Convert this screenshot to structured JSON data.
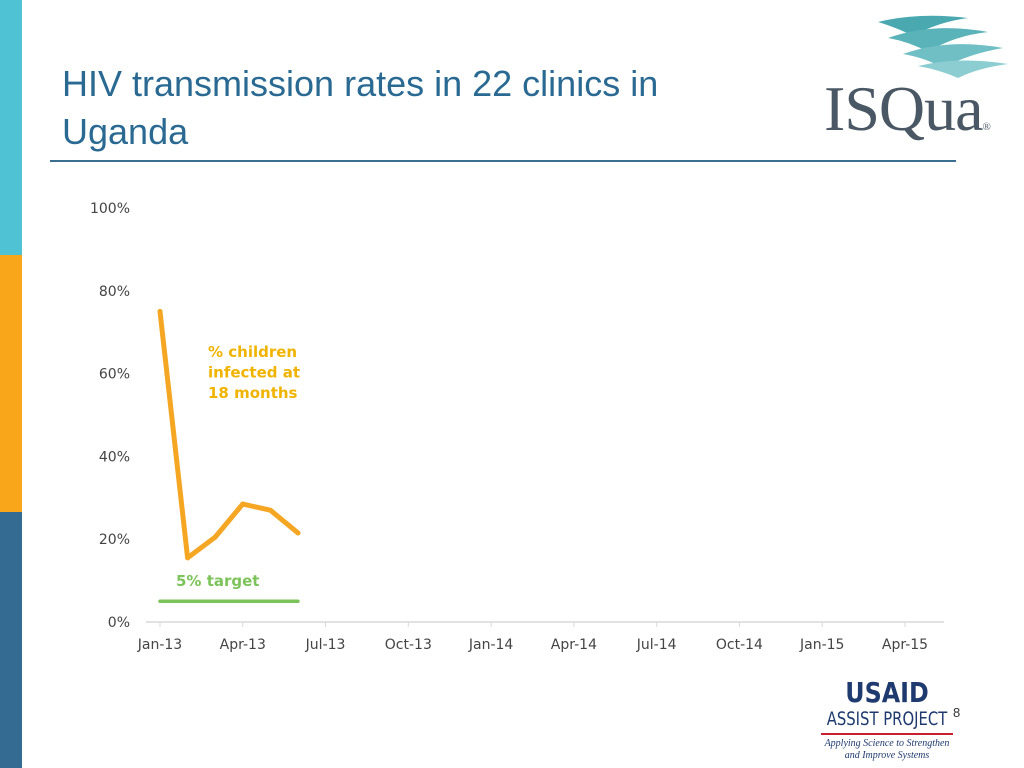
{
  "slide": {
    "title": "HIV transmission rates in 22 clinics in Uganda",
    "page_number": "8"
  },
  "logos": {
    "isqua": "ISQua",
    "isqua_mark": "®",
    "usaid": "USAID",
    "assist": "ASSIST PROJECT",
    "tagline_line1": "Applying Science to Strengthen",
    "tagline_line2": "and Improve Systems"
  },
  "colors": {
    "series": "#f5a623",
    "target": "#7cc35a",
    "series_label": "#f0b400",
    "target_label": "#7cc35a",
    "axis": "#d9d9d9"
  },
  "chart_data": {
    "type": "line",
    "title": "",
    "xlabel": "",
    "ylabel": "",
    "ylim": [
      0,
      100
    ],
    "xlim": [
      "Jan-13",
      "Jun-15"
    ],
    "y_ticks": [
      "0%",
      "20%",
      "40%",
      "60%",
      "80%",
      "100%"
    ],
    "y_tick_values": [
      0,
      20,
      40,
      60,
      80,
      100
    ],
    "x_ticks": [
      "Jan-13",
      "Apr-13",
      "Jul-13",
      "Oct-13",
      "Jan-14",
      "Apr-14",
      "Jul-14",
      "Oct-14",
      "Jan-15",
      "Apr-15"
    ],
    "x_tick_months": [
      0,
      3,
      6,
      9,
      12,
      15,
      18,
      21,
      24,
      27
    ],
    "series": [
      {
        "name": "% children infected at 18 months",
        "label_lines": [
          "% children",
          "infected at",
          "18 months"
        ],
        "x_months": [
          0,
          1,
          2,
          3,
          4,
          5
        ],
        "values": [
          75,
          15.5,
          20.5,
          28.5,
          27,
          21.5
        ]
      },
      {
        "name": "5% target",
        "label_lines": [
          "5% target"
        ],
        "x_months": [
          0,
          5
        ],
        "values": [
          5,
          5
        ]
      }
    ]
  }
}
